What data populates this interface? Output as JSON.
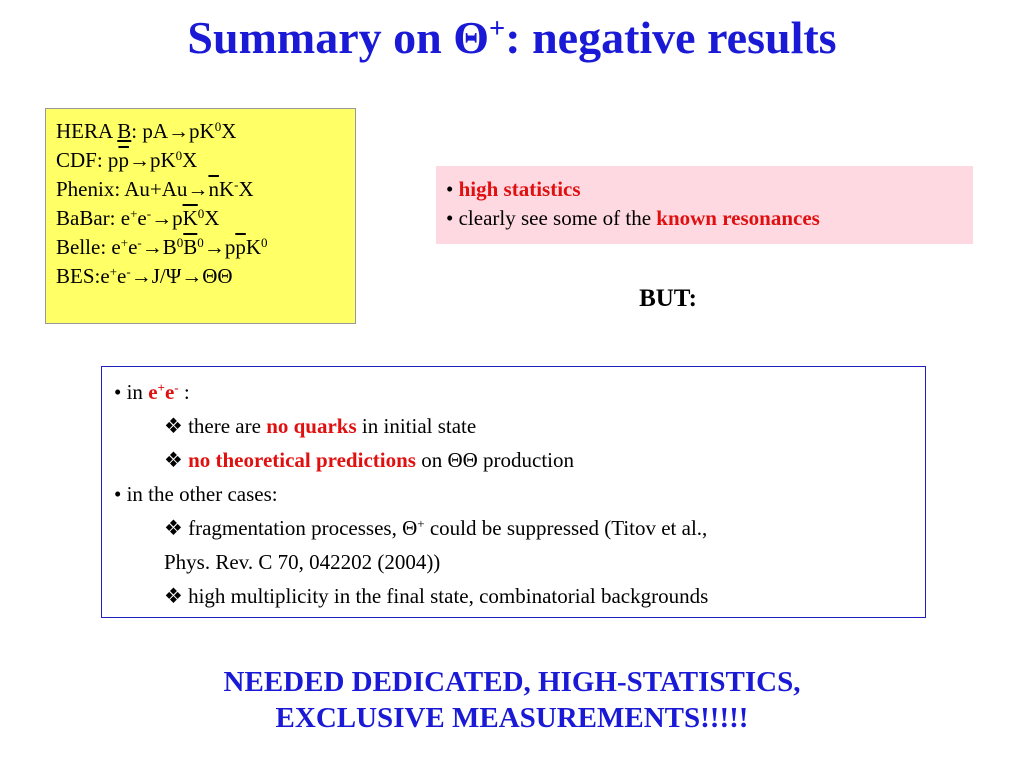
{
  "title": [
    "Summary on Θ",
    "+",
    ": negative results"
  ],
  "experiments": [
    [
      "HERA ",
      "B",
      ": pA→pK",
      "0",
      "X"
    ],
    [
      "CDF: p",
      "p",
      "→pK",
      "0",
      "X"
    ],
    [
      "Phenix: Au+Au→",
      "n",
      "K",
      "-",
      "X"
    ],
    [
      "BaBar: e",
      "+",
      "e",
      "-",
      "→p",
      "K",
      "0",
      "X"
    ],
    [
      "Belle: e",
      "+",
      "e",
      "-",
      "→B",
      "0",
      "B",
      "0",
      "→p",
      "p",
      "K",
      "0"
    ],
    [
      "BES:e",
      "+",
      "e",
      "-",
      "→J/Ψ→ΘΘ"
    ]
  ],
  "pros": [
    [
      "• ",
      "high statistics"
    ],
    [
      "• clearly see some of the ",
      "known resonances"
    ]
  ],
  "but": "BUT:",
  "cons": [
    [
      "• in ",
      "e",
      "+",
      "e",
      "-",
      " :"
    ],
    [
      "❖ there are ",
      "no quarks",
      " in initial state"
    ],
    [
      "❖ ",
      "no theoretical predictions",
      " on ΘΘ production"
    ],
    [
      "• in the other cases:"
    ],
    [
      "❖ fragmentation processes, Θ",
      "+",
      " could be suppressed (Titov et al.,"
    ],
    [
      "Phys. Rev. C 70, 042202 (2004))"
    ],
    [
      "❖ high multiplicity in the final state, combinatorial backgrounds"
    ]
  ],
  "footer": [
    "NEEDED DEDICATED, HIGH-STATISTICS,",
    "EXCLUSIVE MEASUREMENTS!!!!!"
  ]
}
